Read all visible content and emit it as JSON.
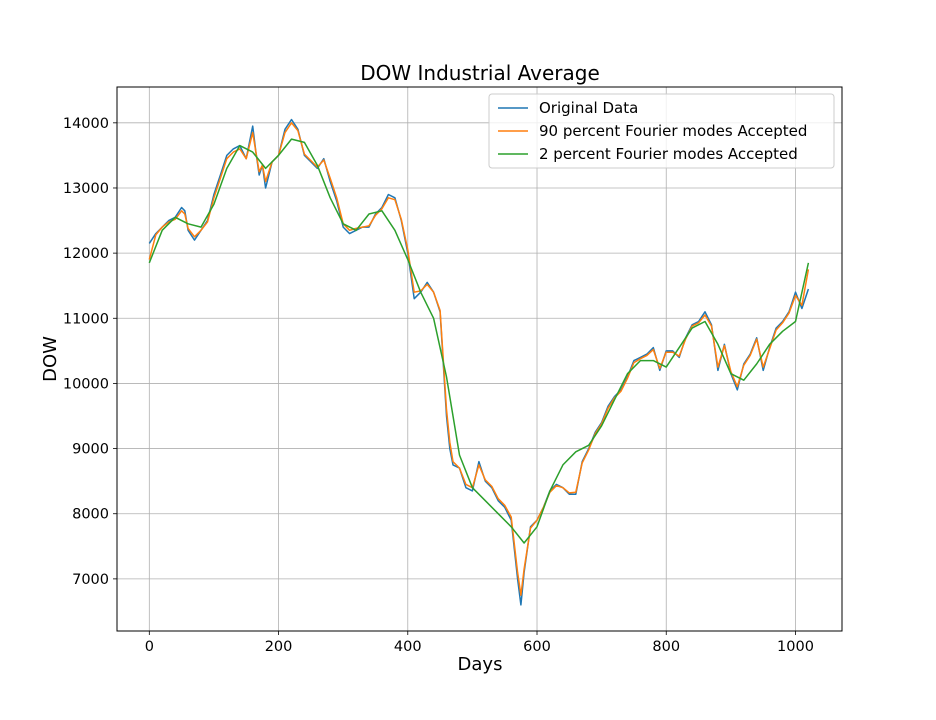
{
  "chart_data": {
    "type": "line",
    "title": "DOW Industrial Average",
    "xlabel": "Days",
    "ylabel": "DOW",
    "xlim": [
      -50,
      1072
    ],
    "ylim": [
      6200,
      14550
    ],
    "xticks": [
      0,
      200,
      400,
      600,
      800,
      1000
    ],
    "yticks": [
      7000,
      8000,
      9000,
      10000,
      11000,
      12000,
      13000,
      14000
    ],
    "grid": true,
    "legend_position": "top-right",
    "colors": {
      "original": "#1f77b4",
      "ninety": "#ff7f0e",
      "two": "#2ca02c"
    },
    "series": [
      {
        "name": "Original Data",
        "key": "original",
        "x": [
          0,
          10,
          20,
          30,
          40,
          50,
          55,
          60,
          70,
          80,
          90,
          100,
          110,
          120,
          130,
          140,
          150,
          160,
          165,
          170,
          175,
          180,
          190,
          200,
          210,
          220,
          230,
          240,
          250,
          260,
          270,
          280,
          290,
          300,
          310,
          320,
          330,
          340,
          350,
          360,
          370,
          380,
          390,
          400,
          410,
          420,
          430,
          440,
          450,
          460,
          465,
          470,
          480,
          490,
          500,
          510,
          520,
          530,
          540,
          550,
          560,
          570,
          575,
          580,
          590,
          600,
          610,
          620,
          630,
          640,
          650,
          660,
          670,
          680,
          690,
          700,
          710,
          720,
          730,
          740,
          750,
          760,
          770,
          780,
          790,
          800,
          810,
          820,
          830,
          840,
          850,
          860,
          870,
          880,
          890,
          900,
          910,
          920,
          930,
          940,
          950,
          960,
          970,
          980,
          990,
          1000,
          1010,
          1020
        ],
        "y": [
          12150,
          12300,
          12400,
          12500,
          12550,
          12700,
          12650,
          12350,
          12200,
          12350,
          12500,
          12900,
          13200,
          13500,
          13600,
          13650,
          13450,
          13950,
          13550,
          13200,
          13350,
          13000,
          13400,
          13500,
          13900,
          14050,
          13900,
          13500,
          13400,
          13300,
          13450,
          13100,
          12800,
          12400,
          12300,
          12350,
          12400,
          12400,
          12600,
          12700,
          12900,
          12850,
          12500,
          12000,
          11300,
          11400,
          11550,
          11400,
          11100,
          9500,
          9000,
          8750,
          8700,
          8400,
          8350,
          8800,
          8500,
          8400,
          8200,
          8100,
          7900,
          7000,
          6600,
          7100,
          7800,
          7900,
          8100,
          8350,
          8450,
          8400,
          8300,
          8300,
          8800,
          9000,
          9250,
          9400,
          9650,
          9800,
          9900,
          10100,
          10350,
          10400,
          10450,
          10550,
          10200,
          10500,
          10500,
          10400,
          10700,
          10900,
          10950,
          11100,
          10900,
          10200,
          10600,
          10150,
          9900,
          10300,
          10450,
          10700,
          10200,
          10550,
          10850,
          10950,
          11100,
          11400,
          11150,
          11450
        ]
      },
      {
        "name": "90 percent Fourier modes Accepted",
        "key": "ninety",
        "x": [
          0,
          10,
          20,
          30,
          40,
          50,
          55,
          60,
          70,
          80,
          90,
          100,
          110,
          120,
          130,
          140,
          150,
          160,
          165,
          170,
          175,
          180,
          190,
          200,
          210,
          220,
          230,
          240,
          250,
          260,
          270,
          280,
          290,
          300,
          310,
          320,
          330,
          340,
          350,
          360,
          370,
          380,
          390,
          400,
          410,
          420,
          430,
          440,
          450,
          460,
          465,
          470,
          480,
          490,
          500,
          510,
          520,
          530,
          540,
          550,
          560,
          570,
          575,
          580,
          590,
          600,
          610,
          620,
          630,
          640,
          650,
          660,
          670,
          680,
          690,
          700,
          710,
          720,
          730,
          740,
          750,
          760,
          770,
          780,
          790,
          800,
          810,
          820,
          830,
          840,
          850,
          860,
          870,
          880,
          890,
          900,
          910,
          920,
          930,
          940,
          950,
          960,
          970,
          980,
          990,
          1000,
          1010,
          1020
        ],
        "y": [
          11900,
          12280,
          12400,
          12480,
          12520,
          12650,
          12600,
          12380,
          12250,
          12350,
          12480,
          12850,
          13150,
          13450,
          13550,
          13600,
          13450,
          13850,
          13550,
          13250,
          13350,
          13100,
          13400,
          13500,
          13850,
          14000,
          13880,
          13520,
          13420,
          13320,
          13430,
          13150,
          12850,
          12450,
          12350,
          12380,
          12400,
          12420,
          12580,
          12680,
          12850,
          12820,
          12520,
          12050,
          11400,
          11420,
          11520,
          11400,
          11120,
          9600,
          9100,
          8800,
          8700,
          8450,
          8400,
          8750,
          8520,
          8420,
          8230,
          8130,
          7950,
          7100,
          6750,
          7150,
          7780,
          7900,
          8100,
          8330,
          8430,
          8400,
          8320,
          8330,
          8780,
          8980,
          9230,
          9380,
          9620,
          9780,
          9880,
          10080,
          10320,
          10380,
          10430,
          10520,
          10230,
          10480,
          10480,
          10420,
          10680,
          10880,
          10930,
          11050,
          10880,
          10250,
          10580,
          10180,
          9950,
          10280,
          10430,
          10680,
          10250,
          10530,
          10820,
          10930,
          11080,
          11350,
          11200,
          11750
        ]
      },
      {
        "name": "2 percent Fourier modes Accepted",
        "key": "two",
        "x": [
          0,
          20,
          40,
          60,
          80,
          100,
          120,
          140,
          160,
          180,
          200,
          220,
          240,
          260,
          280,
          300,
          320,
          340,
          360,
          380,
          400,
          420,
          440,
          460,
          480,
          500,
          520,
          540,
          560,
          580,
          600,
          620,
          640,
          660,
          680,
          700,
          720,
          740,
          760,
          780,
          800,
          820,
          840,
          860,
          880,
          900,
          920,
          940,
          960,
          980,
          1000,
          1020
        ],
        "y": [
          11850,
          12350,
          12550,
          12450,
          12400,
          12750,
          13300,
          13650,
          13550,
          13300,
          13500,
          13750,
          13700,
          13350,
          12850,
          12450,
          12350,
          12600,
          12650,
          12350,
          11900,
          11400,
          11000,
          10100,
          8900,
          8400,
          8200,
          8000,
          7800,
          7550,
          7800,
          8350,
          8750,
          8950,
          9050,
          9350,
          9750,
          10150,
          10350,
          10350,
          10250,
          10550,
          10850,
          10950,
          10600,
          10150,
          10050,
          10300,
          10600,
          10800,
          10950,
          11850
        ]
      }
    ]
  }
}
